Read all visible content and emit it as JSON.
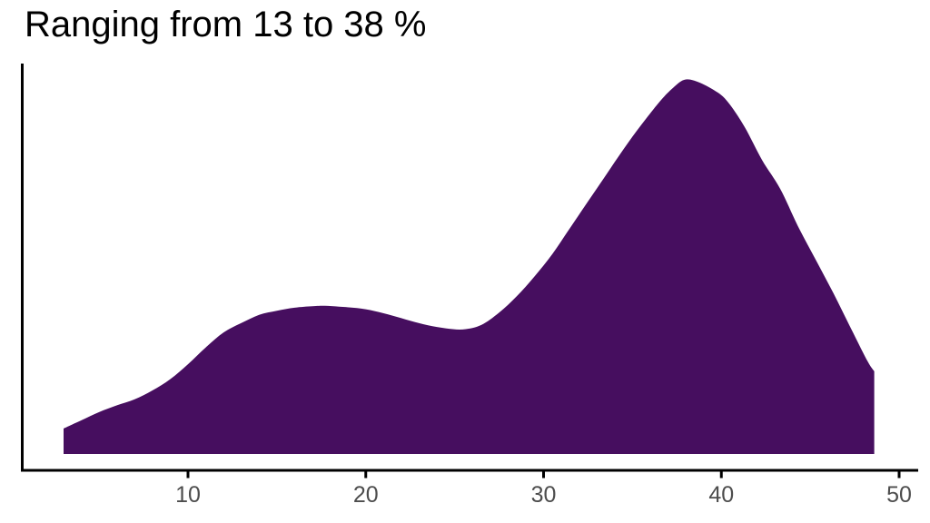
{
  "chart_data": {
    "type": "area",
    "title": "Ranging from 13 to 38 %",
    "subtitle": "",
    "xlabel": "",
    "ylabel": "",
    "legend": "none",
    "grid": false,
    "x_ticks": [
      10,
      20,
      30,
      40,
      50
    ],
    "x_range_shown": [
      3.0,
      50.5
    ],
    "y_units": "kernel density (no y axis shown; values normalized so main peak = 1)",
    "bimodal_summary": {
      "left_tail_start_x": 3.0,
      "first_mode_x": 17.7,
      "first_mode_density": 0.396,
      "local_min_x": 25.5,
      "local_min_density": 0.333,
      "main_mode_x": 37.9,
      "main_mode_density": 1.0,
      "right_edge_x": 48.6,
      "right_edge_density": 0.221
    },
    "series": [
      {
        "name": "density",
        "points": [
          [
            3.0,
            0.068
          ],
          [
            4.0,
            0.09
          ],
          [
            5.0,
            0.112
          ],
          [
            6.0,
            0.13
          ],
          [
            7.0,
            0.146
          ],
          [
            8.0,
            0.17
          ],
          [
            9.0,
            0.2
          ],
          [
            10.0,
            0.24
          ],
          [
            11.0,
            0.285
          ],
          [
            12.0,
            0.325
          ],
          [
            13.0,
            0.35
          ],
          [
            14.0,
            0.372
          ],
          [
            15.0,
            0.383
          ],
          [
            16.0,
            0.391
          ],
          [
            17.0,
            0.395
          ],
          [
            17.7,
            0.396
          ],
          [
            18.5,
            0.394
          ],
          [
            19.5,
            0.39
          ],
          [
            20.5,
            0.382
          ],
          [
            21.5,
            0.37
          ],
          [
            22.5,
            0.356
          ],
          [
            23.5,
            0.344
          ],
          [
            24.5,
            0.336
          ],
          [
            25.5,
            0.333
          ],
          [
            26.5,
            0.345
          ],
          [
            27.5,
            0.378
          ],
          [
            28.5,
            0.422
          ],
          [
            29.5,
            0.475
          ],
          [
            30.5,
            0.535
          ],
          [
            31.5,
            0.605
          ],
          [
            32.5,
            0.675
          ],
          [
            33.5,
            0.745
          ],
          [
            34.5,
            0.815
          ],
          [
            35.5,
            0.88
          ],
          [
            36.5,
            0.94
          ],
          [
            37.2,
            0.975
          ],
          [
            37.9,
            1.0
          ],
          [
            38.6,
            0.996
          ],
          [
            39.5,
            0.975
          ],
          [
            40.3,
            0.945
          ],
          [
            41.3,
            0.875
          ],
          [
            42.3,
            0.785
          ],
          [
            43.3,
            0.71
          ],
          [
            44.3,
            0.61
          ],
          [
            45.3,
            0.52
          ],
          [
            46.3,
            0.43
          ],
          [
            47.3,
            0.335
          ],
          [
            48.2,
            0.25
          ],
          [
            48.6,
            0.221
          ]
        ]
      }
    ]
  },
  "colors": {
    "area_fill": "#460E5F",
    "axis_line": "#000000",
    "tick_mark": "#000000",
    "tick_label": "#4D4D4D",
    "title_text": "#000000",
    "background": "#FFFFFF"
  }
}
